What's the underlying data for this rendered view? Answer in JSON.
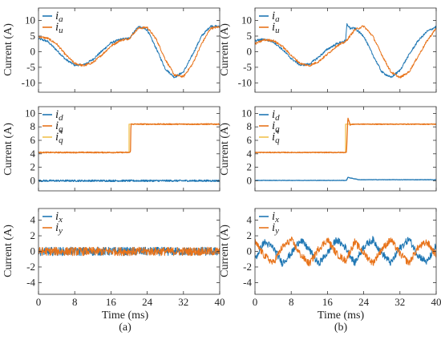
{
  "figure": {
    "sublabels": [
      "(a)",
      "(b)"
    ],
    "xlabel": "Time (ms)",
    "ylabel": "Current (A)"
  },
  "colors": {
    "blue": "#1f77b4",
    "orange": "#e8731a",
    "yellow": "#f2c14e"
  },
  "chart_data": [
    {
      "id": "a-top",
      "type": "line",
      "column": "a",
      "row": 0,
      "xlim": [
        0,
        40
      ],
      "ylim": [
        -13,
        14
      ],
      "xticks": [
        0,
        8,
        16,
        24,
        32,
        40
      ],
      "yticks": [
        -10,
        -5,
        0,
        5,
        10
      ],
      "legend": {
        "placement": "top-left",
        "entries": [
          {
            "base": "i",
            "sub": "a",
            "color": "blue"
          },
          {
            "base": "i",
            "sub": "u",
            "color": "orange"
          }
        ]
      },
      "series": [
        {
          "name": "i_a",
          "color": "blue",
          "noise": 0.35,
          "x": [
            0,
            2,
            4,
            6,
            8,
            10,
            12,
            14,
            16,
            18,
            20,
            22,
            24,
            26,
            28,
            30,
            32,
            34,
            36,
            38,
            40
          ],
          "y": [
            4.2,
            3.3,
            0.5,
            -2.5,
            -4.3,
            -4.2,
            -2.5,
            0.2,
            2.8,
            3.9,
            4.3,
            8.0,
            7.0,
            1.0,
            -5.5,
            -8.2,
            -6.5,
            -1.0,
            5.0,
            8.2,
            8.0
          ]
        },
        {
          "name": "i_u",
          "color": "orange",
          "noise": 0.35,
          "x": [
            0,
            2,
            4,
            6,
            8,
            10,
            12,
            14,
            16,
            18,
            20,
            22,
            24,
            26,
            28,
            30,
            32,
            34,
            36,
            38,
            40
          ],
          "y": [
            4.8,
            4.3,
            2.5,
            -1.0,
            -3.8,
            -4.5,
            -3.5,
            -1.0,
            1.8,
            3.6,
            4.2,
            7.5,
            7.8,
            4.0,
            -2.5,
            -7.5,
            -8.0,
            -4.0,
            2.5,
            7.5,
            8.0
          ]
        }
      ]
    },
    {
      "id": "a-mid",
      "type": "line",
      "column": "a",
      "row": 1,
      "xlim": [
        0,
        40
      ],
      "ylim": [
        -1.5,
        11
      ],
      "xticks": [
        0,
        8,
        16,
        24,
        32,
        40
      ],
      "yticks": [
        0,
        2,
        4,
        6,
        8,
        10
      ],
      "legend": {
        "placement": "top-left",
        "entries": [
          {
            "base": "i",
            "sub": "d",
            "color": "blue"
          },
          {
            "base": "i",
            "sub": "q",
            "color": "orange"
          },
          {
            "base": "i",
            "sub": "q",
            "sup": "*",
            "color": "yellow"
          }
        ]
      },
      "series": [
        {
          "name": "i_d",
          "color": "blue",
          "noise": 0.12,
          "x": [
            0,
            40
          ],
          "y": [
            0.0,
            0.0
          ]
        },
        {
          "name": "i_q*",
          "color": "yellow",
          "noise": 0,
          "x": [
            0,
            20,
            20,
            40
          ],
          "y": [
            4.2,
            4.2,
            8.4,
            8.4
          ]
        },
        {
          "name": "i_q",
          "color": "orange",
          "noise": 0.08,
          "x": [
            0,
            20.3,
            20.4,
            40
          ],
          "y": [
            4.2,
            4.2,
            8.4,
            8.4
          ]
        }
      ]
    },
    {
      "id": "a-bot",
      "type": "line",
      "column": "a",
      "row": 2,
      "xlim": [
        0,
        40
      ],
      "ylim": [
        -5.5,
        5.5
      ],
      "xticks": [
        0,
        8,
        16,
        24,
        32,
        40
      ],
      "yticks": [
        -4,
        -2,
        0,
        2,
        4
      ],
      "legend": {
        "placement": "top-left",
        "entries": [
          {
            "base": "i",
            "sub": "x",
            "color": "blue"
          },
          {
            "base": "i",
            "sub": "y",
            "color": "orange"
          }
        ]
      },
      "series": [
        {
          "name": "i_x",
          "color": "blue",
          "noise": 0.55,
          "x": [
            0,
            40
          ],
          "y": [
            0.0,
            0.0
          ]
        },
        {
          "name": "i_y",
          "color": "orange",
          "noise": 0.55,
          "x": [
            0,
            40
          ],
          "y": [
            0.0,
            0.0
          ]
        }
      ]
    },
    {
      "id": "b-top",
      "type": "line",
      "column": "b",
      "row": 0,
      "xlim": [
        0,
        40
      ],
      "ylim": [
        -13,
        14
      ],
      "xticks": [
        0,
        8,
        16,
        24,
        32,
        40
      ],
      "yticks": [
        -10,
        -5,
        0,
        5,
        10
      ],
      "legend": {
        "placement": "top-left",
        "entries": [
          {
            "base": "i",
            "sub": "a",
            "color": "blue"
          },
          {
            "base": "i",
            "sub": "u",
            "color": "orange"
          }
        ]
      },
      "series": [
        {
          "name": "i_a",
          "color": "blue",
          "noise": 0.35,
          "x": [
            0,
            2,
            4,
            6,
            8,
            10,
            12,
            14,
            16,
            18,
            20,
            20.3,
            21,
            22,
            24,
            26,
            28,
            30,
            32,
            34,
            36,
            38,
            40
          ],
          "y": [
            3.5,
            4.0,
            3.2,
            0.8,
            -2.2,
            -4.3,
            -4.0,
            -1.8,
            0.8,
            2.5,
            3.5,
            8.8,
            7.5,
            7.5,
            5.0,
            -1.0,
            -6.5,
            -8.3,
            -6.0,
            -1.0,
            3.5,
            6.5,
            8.0
          ]
        },
        {
          "name": "i_u",
          "color": "orange",
          "noise": 0.35,
          "x": [
            0,
            2,
            4,
            6,
            8,
            10,
            12,
            14,
            16,
            18,
            20,
            22,
            24,
            26,
            28,
            30,
            32,
            34,
            36,
            38,
            40
          ],
          "y": [
            2.5,
            3.8,
            3.6,
            1.8,
            -1.2,
            -3.8,
            -4.5,
            -3.2,
            -0.8,
            1.8,
            3.2,
            7.0,
            8.2,
            5.0,
            -1.0,
            -6.5,
            -8.3,
            -6.5,
            -1.5,
            3.5,
            7.5
          ]
        }
      ]
    },
    {
      "id": "b-mid",
      "type": "line",
      "column": "b",
      "row": 1,
      "xlim": [
        0,
        40
      ],
      "ylim": [
        -1.5,
        11
      ],
      "xticks": [
        0,
        8,
        16,
        24,
        32,
        40
      ],
      "yticks": [
        0,
        2,
        4,
        6,
        8,
        10
      ],
      "legend": {
        "placement": "top-left",
        "entries": [
          {
            "base": "i",
            "sub": "d",
            "color": "blue"
          },
          {
            "base": "i",
            "sub": "q",
            "color": "orange"
          },
          {
            "base": "i",
            "sub": "q",
            "sup": "*",
            "color": "yellow"
          }
        ]
      },
      "series": [
        {
          "name": "i_d",
          "color": "blue",
          "noise": 0.03,
          "x": [
            0,
            20.2,
            20.5,
            21.5,
            23,
            40
          ],
          "y": [
            0.05,
            0.05,
            0.5,
            0.35,
            0.15,
            0.15
          ]
        },
        {
          "name": "i_q*",
          "color": "yellow",
          "noise": 0,
          "x": [
            0,
            20,
            20,
            40
          ],
          "y": [
            4.2,
            4.2,
            8.4,
            8.4
          ]
        },
        {
          "name": "i_q",
          "color": "orange",
          "noise": 0.06,
          "x": [
            0,
            20.2,
            20.5,
            21,
            21.8,
            40
          ],
          "y": [
            4.2,
            4.2,
            9.4,
            8.3,
            8.4,
            8.4
          ]
        }
      ]
    },
    {
      "id": "b-bot",
      "type": "line",
      "column": "b",
      "row": 2,
      "xlim": [
        0,
        40
      ],
      "ylim": [
        -5.5,
        5.5
      ],
      "xticks": [
        0,
        8,
        16,
        24,
        32,
        40
      ],
      "yticks": [
        -4,
        -2,
        0,
        2,
        4
      ],
      "legend": {
        "placement": "top-left",
        "entries": [
          {
            "base": "i",
            "sub": "x",
            "color": "blue"
          },
          {
            "base": "i",
            "sub": "y",
            "color": "orange"
          }
        ]
      },
      "series": [
        {
          "name": "i_x",
          "color": "blue",
          "noise": 0.45,
          "x": [
            0,
            2,
            4,
            6,
            8,
            10,
            12,
            14,
            16,
            18,
            20,
            22,
            24,
            26,
            28,
            30,
            32,
            34,
            36,
            38,
            40
          ],
          "y": [
            -1.0,
            1.2,
            0.5,
            -1.5,
            -0.3,
            1.5,
            0.2,
            -1.6,
            -0.2,
            1.5,
            0.5,
            -1.5,
            0.6,
            1.5,
            -0.2,
            -1.5,
            0.4,
            1.6,
            -0.5,
            -1.4,
            0.8
          ]
        },
        {
          "name": "i_y",
          "color": "orange",
          "noise": 0.45,
          "x": [
            0,
            2,
            4,
            6,
            8,
            10,
            12,
            14,
            16,
            18,
            20,
            22,
            24,
            26,
            28,
            30,
            32,
            34,
            36,
            38,
            40
          ],
          "y": [
            1.2,
            -0.5,
            -1.5,
            0.5,
            1.5,
            -0.4,
            -1.6,
            0.3,
            1.5,
            -0.3,
            -1.2,
            1.2,
            -0.2,
            -1.5,
            0.3,
            1.5,
            -0.3,
            -1.5,
            0.5,
            1.2,
            -0.5
          ]
        }
      ]
    }
  ]
}
